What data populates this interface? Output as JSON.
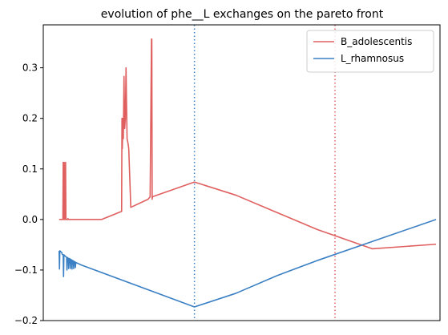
{
  "chart_data": {
    "type": "line",
    "title": "evolution of phe__L exchanges on the pareto front",
    "xlabel": "",
    "ylabel": "",
    "xlim": [
      0,
      100
    ],
    "ylim": [
      -0.2,
      0.385
    ],
    "yticks": [
      -0.2,
      -0.1,
      0.0,
      0.1,
      0.2,
      0.3
    ],
    "ytick_labels": [
      "−0.2",
      "−0.1",
      "0.0",
      "0.1",
      "0.2",
      "0.3"
    ],
    "legend_position": "upper right",
    "grid": false,
    "vlines": [
      {
        "x": 35.9,
        "color": "#3b80c4",
        "style": "dotted"
      },
      {
        "x": 73.2,
        "color": "#e06060",
        "style": "dotted"
      }
    ],
    "series": [
      {
        "name": "B_adolescentis",
        "color": "#e06060",
        "points": [
          [
            0,
            0.0
          ],
          [
            0.99,
            0.0
          ],
          [
            1.08,
            0.113
          ],
          [
            1.17,
            0.0
          ],
          [
            1.26,
            0.0
          ],
          [
            1.35,
            0.113
          ],
          [
            1.44,
            0.0
          ],
          [
            1.62,
            0.0
          ],
          [
            1.71,
            0.113
          ],
          [
            1.8,
            0.0
          ],
          [
            2.25,
            0.0
          ],
          [
            2.34,
            0.002
          ],
          [
            2.43,
            0.0
          ],
          [
            11.26,
            0.0
          ],
          [
            16.58,
            0.016
          ],
          [
            16.67,
            0.2
          ],
          [
            16.76,
            0.14
          ],
          [
            16.94,
            0.2
          ],
          [
            17.03,
            0.16
          ],
          [
            17.21,
            0.283
          ],
          [
            17.39,
            0.18
          ],
          [
            17.57,
            0.2
          ],
          [
            17.75,
            0.3
          ],
          [
            17.84,
            0.25
          ],
          [
            18.02,
            0.16
          ],
          [
            18.29,
            0.15
          ],
          [
            18.47,
            0.14
          ],
          [
            19.01,
            0.024
          ],
          [
            23.6,
            0.04
          ],
          [
            24.14,
            0.045
          ],
          [
            24.5,
            0.357
          ],
          [
            24.59,
            0.357
          ],
          [
            24.68,
            0.04
          ],
          [
            24.77,
            0.045
          ],
          [
            35.9,
            0.074
          ],
          [
            46.92,
            0.048
          ],
          [
            57.39,
            0.015
          ],
          [
            68.56,
            -0.02
          ],
          [
            83.08,
            -0.058
          ],
          [
            100,
            -0.049
          ]
        ]
      },
      {
        "name": "L_rhamnosus",
        "color": "#3b80c4",
        "points": [
          [
            0,
            -0.062
          ],
          [
            0.09,
            -0.098
          ],
          [
            0.18,
            -0.062
          ],
          [
            0.45,
            -0.064
          ],
          [
            0.63,
            -0.065
          ],
          [
            0.72,
            -0.066
          ],
          [
            0.81,
            -0.069
          ],
          [
            1.08,
            -0.07
          ],
          [
            1.17,
            -0.113
          ],
          [
            1.26,
            -0.07
          ],
          [
            1.98,
            -0.075
          ],
          [
            2.07,
            -0.1
          ],
          [
            2.16,
            -0.075
          ],
          [
            2.43,
            -0.077
          ],
          [
            2.52,
            -0.097
          ],
          [
            2.61,
            -0.077
          ],
          [
            2.88,
            -0.078
          ],
          [
            2.97,
            -0.097
          ],
          [
            3.06,
            -0.079
          ],
          [
            3.33,
            -0.08
          ],
          [
            3.42,
            -0.098
          ],
          [
            3.51,
            -0.081
          ],
          [
            3.78,
            -0.082
          ],
          [
            3.87,
            -0.097
          ],
          [
            3.96,
            -0.083
          ],
          [
            4.23,
            -0.084
          ],
          [
            4.32,
            -0.095
          ],
          [
            4.41,
            -0.085
          ],
          [
            5.86,
            -0.09
          ],
          [
            35.9,
            -0.173
          ],
          [
            46.92,
            -0.146
          ],
          [
            57.84,
            -0.111
          ],
          [
            68.56,
            -0.081
          ],
          [
            100,
            0.0
          ]
        ]
      }
    ]
  }
}
